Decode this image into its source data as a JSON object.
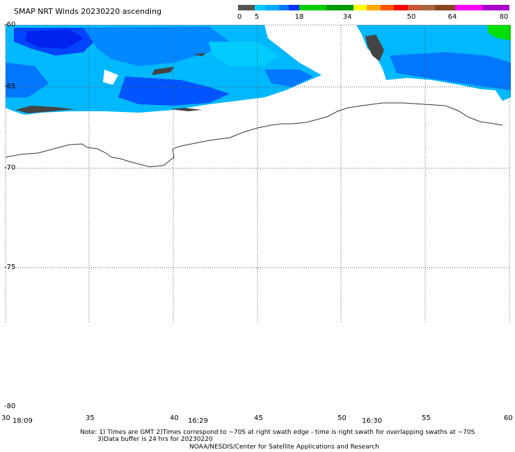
{
  "title": "SMAP NRT Winds 20230220 ascending",
  "colorbar": {
    "labels": [
      "0",
      "5",
      "18",
      "34",
      "50",
      "64",
      "80"
    ],
    "segments": [
      {
        "from": 0,
        "to": 5,
        "color": "#555555"
      },
      {
        "from": 5,
        "to": 8,
        "color": "#00ccff"
      },
      {
        "from": 8,
        "to": 12,
        "color": "#00aaff"
      },
      {
        "from": 12,
        "to": 15,
        "color": "#0077ff"
      },
      {
        "from": 15,
        "to": 18,
        "color": "#0033ff"
      },
      {
        "from": 18,
        "to": 26,
        "color": "#00cc00"
      },
      {
        "from": 26,
        "to": 34,
        "color": "#009900"
      },
      {
        "from": 34,
        "to": 38,
        "color": "#ffff00"
      },
      {
        "from": 38,
        "to": 42,
        "color": "#ffaa00"
      },
      {
        "from": 42,
        "to": 46,
        "color": "#ff5500"
      },
      {
        "from": 46,
        "to": 50,
        "color": "#ff0000"
      },
      {
        "from": 50,
        "to": 54,
        "color": "#cc5533"
      },
      {
        "from": 54,
        "to": 58,
        "color": "#aa6644"
      },
      {
        "from": 58,
        "to": 64,
        "color": "#884422"
      },
      {
        "from": 64,
        "to": 72,
        "color": "#ff00ff"
      },
      {
        "from": 72,
        "to": 80,
        "color": "#aa00cc"
      }
    ]
  },
  "axes": {
    "lat_labels": [
      "-60",
      "-65",
      "-70",
      "-75",
      "-80"
    ],
    "lon_labels": [
      "30",
      "35",
      "40",
      "45",
      "50",
      "55",
      "60"
    ]
  },
  "times": [
    "18:09",
    "16:29",
    "16:30"
  ],
  "notes": {
    "line1": "Note: 1) Times are GMT 2)Times correspond to ~70S at right swath edge - time is right swath for overlapping swaths at ~70S",
    "line2": "3)Data buffer is 24 hrs for 20230220",
    "line3": "NOAA/NESDIS/Center for Satellite Applications and Research"
  },
  "colors": {
    "land_coast": "#333333",
    "grid": "#555555",
    "low_wind": "#555555",
    "wind_cyan": "#00ccff",
    "wind_mid": "#00aaff",
    "wind_blue": "#0077ff",
    "wind_dark": "#0033ff",
    "wind_green": "#00dd00"
  }
}
